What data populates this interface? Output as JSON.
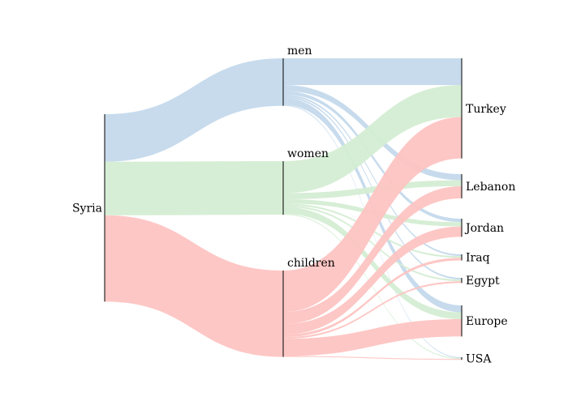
{
  "chart_data": {
    "type": "sankey",
    "title": "",
    "nodes": [
      {
        "id": "syria",
        "label": "Syria"
      },
      {
        "id": "men",
        "label": "men"
      },
      {
        "id": "women",
        "label": "women"
      },
      {
        "id": "children",
        "label": "children"
      },
      {
        "id": "turkey",
        "label": "Turkey"
      },
      {
        "id": "lebanon",
        "label": "Lebanon"
      },
      {
        "id": "jordan",
        "label": "Jordan"
      },
      {
        "id": "iraq",
        "label": "Iraq"
      },
      {
        "id": "egypt",
        "label": "Egypt"
      },
      {
        "id": "europe",
        "label": "Europe"
      },
      {
        "id": "usa",
        "label": "USA"
      }
    ],
    "links": [
      {
        "source": "syria",
        "target": "men",
        "value": 55,
        "color": "#c4d9ec"
      },
      {
        "source": "syria",
        "target": "women",
        "value": 62,
        "color": "#d4edd3"
      },
      {
        "source": "syria",
        "target": "children",
        "value": 100,
        "color": "#fdc4c2"
      },
      {
        "source": "men",
        "target": "turkey",
        "value": 31,
        "color": "#c4d9ec"
      },
      {
        "source": "men",
        "target": "lebanon",
        "value": 7,
        "color": "#c4d9ec"
      },
      {
        "source": "men",
        "target": "jordan",
        "value": 4,
        "color": "#c4d9ec"
      },
      {
        "source": "men",
        "target": "iraq",
        "value": 2,
        "color": "#c4d9ec"
      },
      {
        "source": "men",
        "target": "egypt",
        "value": 2,
        "color": "#c4d9ec"
      },
      {
        "source": "men",
        "target": "europe",
        "value": 8,
        "color": "#c4d9ec"
      },
      {
        "source": "men",
        "target": "usa",
        "value": 1,
        "color": "#c4d9ec"
      },
      {
        "source": "women",
        "target": "turkey",
        "value": 37,
        "color": "#d4edd3"
      },
      {
        "source": "women",
        "target": "lebanon",
        "value": 7,
        "color": "#d4edd3"
      },
      {
        "source": "women",
        "target": "jordan",
        "value": 5,
        "color": "#d4edd3"
      },
      {
        "source": "women",
        "target": "iraq",
        "value": 2,
        "color": "#d4edd3"
      },
      {
        "source": "women",
        "target": "egypt",
        "value": 2,
        "color": "#d4edd3"
      },
      {
        "source": "women",
        "target": "europe",
        "value": 8,
        "color": "#d4edd3"
      },
      {
        "source": "women",
        "target": "usa",
        "value": 1,
        "color": "#d4edd3"
      },
      {
        "source": "children",
        "target": "turkey",
        "value": 48,
        "color": "#fdc4c2"
      },
      {
        "source": "children",
        "target": "lebanon",
        "value": 14,
        "color": "#fdc4c2"
      },
      {
        "source": "children",
        "target": "jordan",
        "value": 12,
        "color": "#fdc4c2"
      },
      {
        "source": "children",
        "target": "iraq",
        "value": 3,
        "color": "#fdc4c2"
      },
      {
        "source": "children",
        "target": "egypt",
        "value": 2,
        "color": "#fdc4c2"
      },
      {
        "source": "children",
        "target": "europe",
        "value": 20,
        "color": "#fdc4c2"
      },
      {
        "source": "children",
        "target": "usa",
        "value": 1,
        "color": "#fdc4c2"
      }
    ]
  }
}
